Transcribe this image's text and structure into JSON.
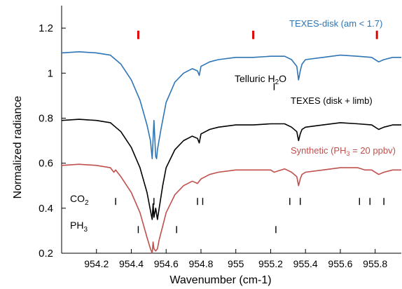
{
  "chart_data": {
    "type": "line",
    "xlabel": "Wavenumber (cm-1)",
    "ylabel": "Normalized radiance",
    "xlim": [
      954.0,
      955.95
    ],
    "ylim": [
      0.2,
      1.3
    ],
    "x_ticks": [
      954.2,
      954.4,
      954.6,
      954.8,
      955.0,
      955.2,
      955.4,
      955.6,
      955.8
    ],
    "x_tick_labels": [
      "954.2",
      "954.4",
      "954.6",
      "954.8",
      "955",
      "955.2",
      "955.4",
      "955.6",
      "955.8"
    ],
    "y_ticks": [
      0.2,
      0.4,
      0.6,
      0.8,
      1.0,
      1.2
    ],
    "y_tick_labels": [
      "0.2",
      "0.4",
      "0.6",
      "0.8",
      "1",
      "1.2"
    ],
    "grid": false,
    "series": [
      {
        "name": "TEXES-disk (am < 1.7)",
        "color": "#2e75b6",
        "x": [
          954.0,
          954.1,
          954.2,
          954.28,
          954.31,
          954.34,
          954.4,
          954.45,
          954.49,
          954.51,
          954.52,
          954.53,
          954.54,
          954.545,
          954.55,
          954.57,
          954.6,
          954.65,
          954.7,
          954.75,
          954.78,
          954.79,
          954.8,
          954.85,
          954.9,
          955.0,
          955.1,
          955.2,
          955.28,
          955.32,
          955.35,
          955.36,
          955.37,
          955.38,
          955.4,
          955.5,
          955.6,
          955.7,
          955.78,
          955.82,
          955.85,
          955.9,
          955.95
        ],
        "y": [
          1.09,
          1.095,
          1.09,
          1.08,
          1.06,
          1.04,
          0.97,
          0.88,
          0.77,
          0.7,
          0.62,
          0.79,
          0.63,
          0.62,
          0.66,
          0.75,
          0.87,
          0.96,
          1.0,
          1.02,
          1.01,
          0.99,
          1.03,
          1.05,
          1.06,
          1.07,
          1.07,
          1.075,
          1.075,
          1.06,
          1.03,
          0.97,
          1.01,
          1.04,
          1.06,
          1.07,
          1.08,
          1.075,
          1.07,
          1.05,
          1.06,
          1.07,
          1.07
        ]
      },
      {
        "name": "TEXES (disk + limb)",
        "color": "#000000",
        "x": [
          954.0,
          954.1,
          954.2,
          954.28,
          954.31,
          954.34,
          954.4,
          954.45,
          954.49,
          954.51,
          954.52,
          954.525,
          954.53,
          954.54,
          954.55,
          954.56,
          954.58,
          954.6,
          954.65,
          954.7,
          954.75,
          954.78,
          954.79,
          954.8,
          954.85,
          954.9,
          955.0,
          955.1,
          955.2,
          955.28,
          955.32,
          955.35,
          955.36,
          955.37,
          955.38,
          955.4,
          955.5,
          955.6,
          955.7,
          955.78,
          955.82,
          955.85,
          955.9,
          955.95
        ],
        "y": [
          0.79,
          0.795,
          0.79,
          0.78,
          0.76,
          0.74,
          0.67,
          0.58,
          0.47,
          0.39,
          0.35,
          0.42,
          0.36,
          0.4,
          0.35,
          0.4,
          0.5,
          0.58,
          0.66,
          0.7,
          0.72,
          0.71,
          0.69,
          0.73,
          0.75,
          0.76,
          0.77,
          0.77,
          0.775,
          0.775,
          0.76,
          0.74,
          0.7,
          0.73,
          0.75,
          0.76,
          0.77,
          0.78,
          0.775,
          0.77,
          0.75,
          0.76,
          0.77,
          0.77
        ]
      },
      {
        "name": "Synthetic (PH₃ = 20 ppbv)",
        "color": "#c0504d",
        "x": [
          954.0,
          954.1,
          954.2,
          954.28,
          954.3,
          954.31,
          954.34,
          954.4,
          954.45,
          954.49,
          954.51,
          954.52,
          954.525,
          954.53,
          954.54,
          954.55,
          954.56,
          954.58,
          954.6,
          954.65,
          954.7,
          954.75,
          954.78,
          954.8,
          954.85,
          954.9,
          955.0,
          955.1,
          955.2,
          955.22,
          955.28,
          955.32,
          955.35,
          955.36,
          955.37,
          955.38,
          955.4,
          955.5,
          955.6,
          955.7,
          955.74,
          955.78,
          955.82,
          955.85,
          955.9,
          955.95
        ],
        "y": [
          0.59,
          0.595,
          0.59,
          0.58,
          0.56,
          0.57,
          0.54,
          0.47,
          0.38,
          0.27,
          0.22,
          0.2,
          0.25,
          0.22,
          0.21,
          0.22,
          0.26,
          0.32,
          0.38,
          0.46,
          0.5,
          0.52,
          0.51,
          0.53,
          0.55,
          0.56,
          0.57,
          0.57,
          0.57,
          0.56,
          0.575,
          0.56,
          0.54,
          0.5,
          0.53,
          0.55,
          0.56,
          0.57,
          0.58,
          0.58,
          0.57,
          0.57,
          0.55,
          0.56,
          0.57,
          0.57
        ]
      }
    ],
    "annotations": {
      "series_labels": [
        {
          "text": "TEXES-disk (am < 1.7)",
          "color": "#2e75b6"
        },
        {
          "text": "TEXES (disk + limb)",
          "color": "#000000"
        },
        {
          "text_main": "Synthetic (PH",
          "text_sub": "3",
          "text_rest": " = 20 ppbv)",
          "color": "#c0504d"
        }
      ],
      "telluric_label": {
        "text_main": "Telluric H",
        "text_sub": "2",
        "text_rest": "O"
      },
      "co2_label": {
        "text_main": "CO",
        "text_sub": "2"
      },
      "ph3_label": {
        "text_main": "PH",
        "text_sub": "3"
      },
      "red_markers_x": [
        954.44,
        955.1,
        955.81
      ],
      "red_marker_y": 1.17,
      "telluric_tick_x": 955.22,
      "telluric_tick_y": 0.94,
      "co2_ticks_x": [
        954.31,
        954.53,
        954.78,
        954.81,
        955.31,
        955.37,
        955.71,
        955.77,
        955.85
      ],
      "co2_tick_y": 0.43,
      "ph3_ticks_x": [
        954.44,
        954.66,
        955.23
      ],
      "ph3_tick_y": 0.305
    }
  }
}
